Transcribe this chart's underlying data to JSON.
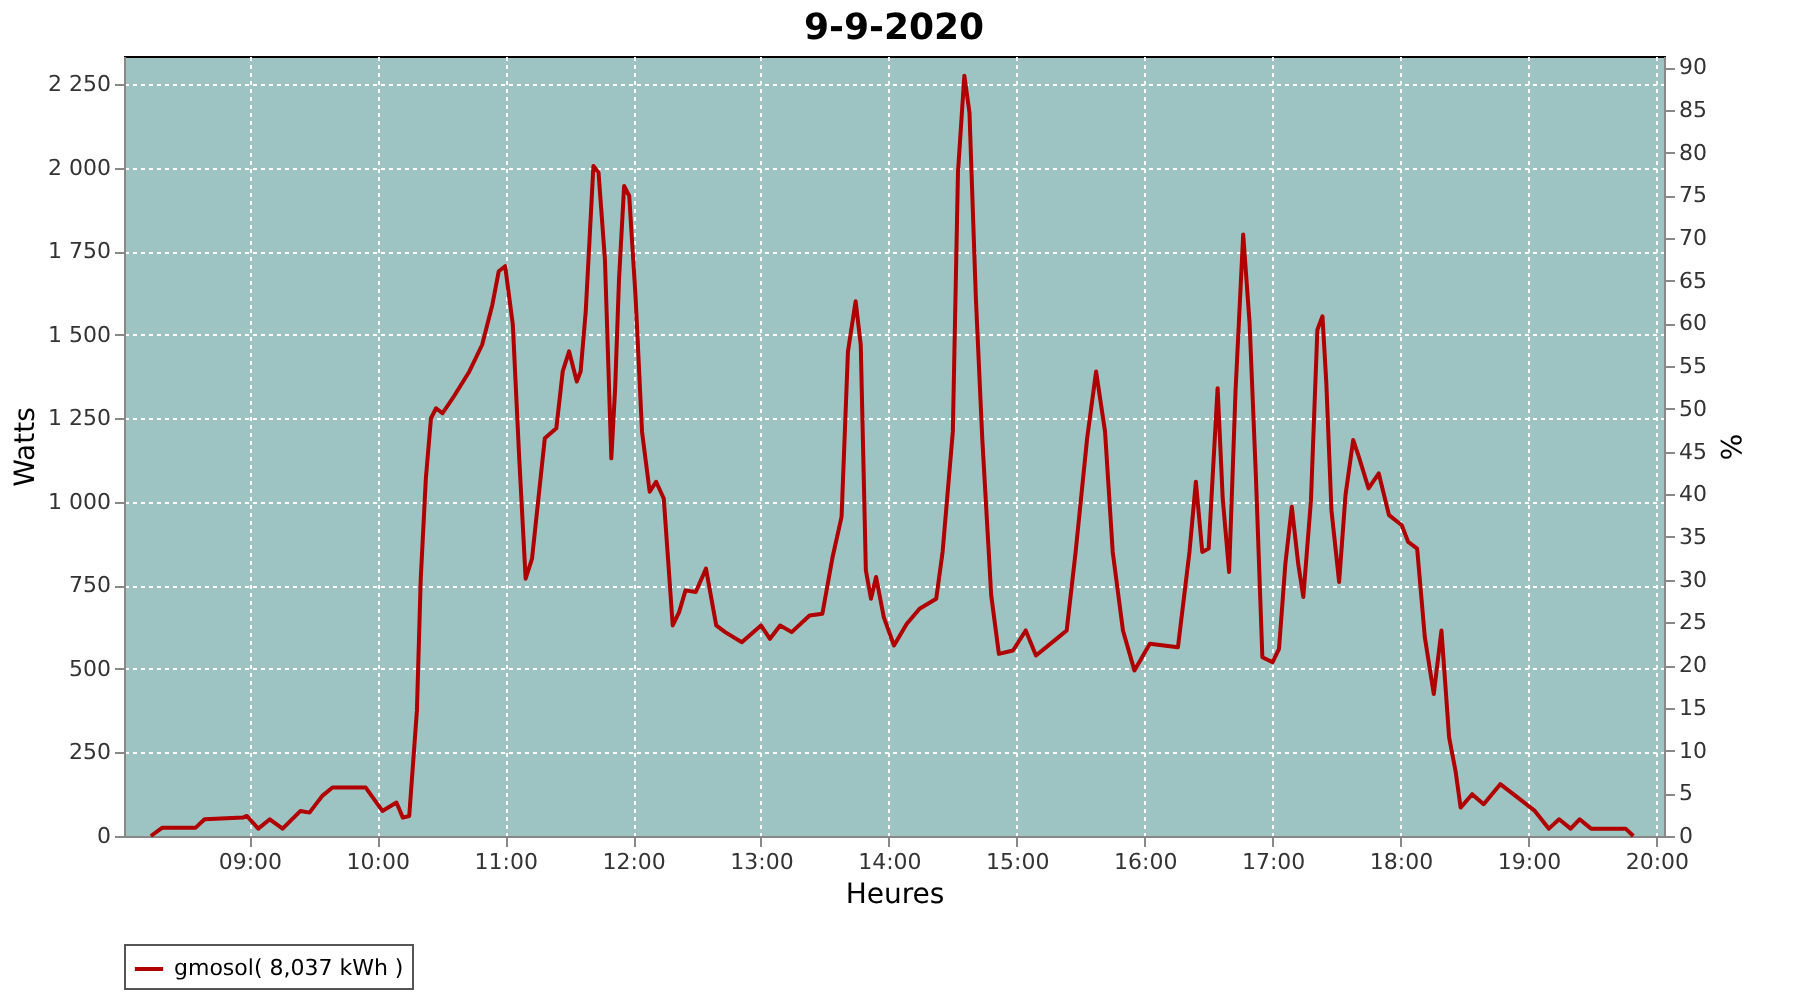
{
  "chart_data": {
    "type": "line",
    "title": "9-9-2020",
    "xlabel": "Heures",
    "ylabel": "Watts",
    "y2label": "%",
    "xlim": [
      8.02,
      20.06
    ],
    "ylim": [
      0,
      2334
    ],
    "y2lim": [
      0,
      91.3
    ],
    "xticks": [
      {
        "value": 9,
        "label": "09:00"
      },
      {
        "value": 10,
        "label": "10:00"
      },
      {
        "value": 11,
        "label": "11:00"
      },
      {
        "value": 12,
        "label": "12:00"
      },
      {
        "value": 13,
        "label": "13:00"
      },
      {
        "value": 14,
        "label": "14:00"
      },
      {
        "value": 15,
        "label": "15:00"
      },
      {
        "value": 16,
        "label": "16:00"
      },
      {
        "value": 17,
        "label": "17:00"
      },
      {
        "value": 18,
        "label": "18:00"
      },
      {
        "value": 19,
        "label": "19:00"
      },
      {
        "value": 20,
        "label": "20:00"
      }
    ],
    "yticks": [
      0,
      250,
      500,
      750,
      {
        "value": 1000,
        "label": "1 000"
      },
      {
        "value": 1250,
        "label": "1 250"
      },
      {
        "value": 1500,
        "label": "1 500"
      },
      {
        "value": 1750,
        "label": "1 750"
      },
      {
        "value": 2000,
        "label": "2 000"
      },
      {
        "value": 2250,
        "label": "2 250"
      }
    ],
    "y2ticks": [
      0,
      5,
      10,
      15,
      20,
      25,
      30,
      35,
      40,
      45,
      50,
      55,
      60,
      65,
      70,
      75,
      80,
      85,
      90
    ],
    "grid": true,
    "legend": "bottom",
    "marker": "none",
    "line_style": "solid",
    "series": [
      {
        "name": "gmosol( 8,037 kWh )",
        "color": "#b00000",
        "x": [
          8.23,
          8.32,
          8.58,
          8.65,
          8.95,
          8.98,
          9.07,
          9.16,
          9.26,
          9.4,
          9.47,
          9.57,
          9.65,
          9.91,
          10.04,
          10.15,
          10.2,
          10.25,
          10.31,
          10.34,
          10.38,
          10.42,
          10.46,
          10.51,
          10.59,
          10.72,
          10.82,
          10.9,
          10.95,
          11.0,
          11.06,
          11.11,
          11.16,
          11.21,
          11.26,
          11.31,
          11.4,
          11.45,
          11.5,
          11.56,
          11.59,
          11.63,
          11.69,
          11.73,
          11.78,
          11.83,
          11.86,
          11.89,
          11.93,
          11.97,
          12.02,
          12.07,
          12.13,
          12.18,
          12.24,
          12.31,
          12.36,
          12.41,
          12.49,
          12.57,
          12.65,
          12.72,
          12.85,
          13.0,
          13.07,
          13.15,
          13.24,
          13.38,
          13.48,
          13.56,
          13.63,
          13.68,
          13.74,
          13.78,
          13.82,
          13.86,
          13.9,
          13.96,
          14.04,
          14.14,
          14.24,
          14.37,
          14.42,
          14.5,
          14.54,
          14.59,
          14.63,
          14.68,
          14.73,
          14.8,
          14.86,
          14.97,
          15.07,
          15.15,
          15.31,
          15.39,
          15.46,
          15.55,
          15.62,
          15.69,
          15.75,
          15.83,
          15.92,
          16.04,
          16.26,
          16.35,
          16.4,
          16.45,
          16.5,
          16.57,
          16.61,
          16.66,
          16.71,
          16.77,
          16.82,
          16.87,
          16.92,
          17.0,
          17.05,
          17.1,
          17.15,
          17.2,
          17.24,
          17.3,
          17.35,
          17.39,
          17.42,
          17.46,
          17.52,
          17.57,
          17.63,
          17.67,
          17.75,
          17.83,
          17.91,
          18.01,
          18.06,
          18.13,
          18.19,
          18.26,
          18.32,
          18.38,
          18.43,
          18.47,
          18.56,
          18.65,
          18.78,
          18.95,
          19.05,
          19.16,
          19.24,
          19.33,
          19.4,
          19.49,
          19.76,
          19.82
        ],
        "values": [
          0,
          25,
          25,
          50,
          55,
          60,
          22,
          50,
          22,
          75,
          70,
          120,
          145,
          145,
          75,
          100,
          55,
          60,
          375,
          770,
          1070,
          1250,
          1280,
          1265,
          1310,
          1390,
          1470,
          1590,
          1690,
          1705,
          1530,
          1130,
          770,
          830,
          1010,
          1190,
          1220,
          1390,
          1450,
          1360,
          1390,
          1570,
          2005,
          1985,
          1725,
          1130,
          1340,
          1665,
          1945,
          1915,
          1610,
          1210,
          1030,
          1060,
          1010,
          630,
          670,
          735,
          730,
          800,
          630,
          610,
          580,
          630,
          590,
          630,
          610,
          660,
          665,
          835,
          955,
          1450,
          1600,
          1470,
          795,
          710,
          775,
          655,
          570,
          635,
          680,
          710,
          850,
          1210,
          1985,
          2275,
          2165,
          1610,
          1190,
          720,
          545,
          555,
          615,
          540,
          590,
          615,
          850,
          1190,
          1390,
          1210,
          850,
          615,
          495,
          575,
          565,
          850,
          1060,
          850,
          860,
          1340,
          1010,
          790,
          1330,
          1800,
          1535,
          1070,
          535,
          520,
          560,
          815,
          985,
          815,
          715,
          1005,
          1515,
          1555,
          1355,
          975,
          760,
          1020,
          1185,
          1140,
          1040,
          1085,
          960,
          930,
          880,
          860,
          595,
          425,
          615,
          295,
          195,
          85,
          125,
          95,
          155,
          105,
          75,
          22,
          50,
          22,
          50,
          22,
          22,
          0
        ]
      }
    ]
  }
}
